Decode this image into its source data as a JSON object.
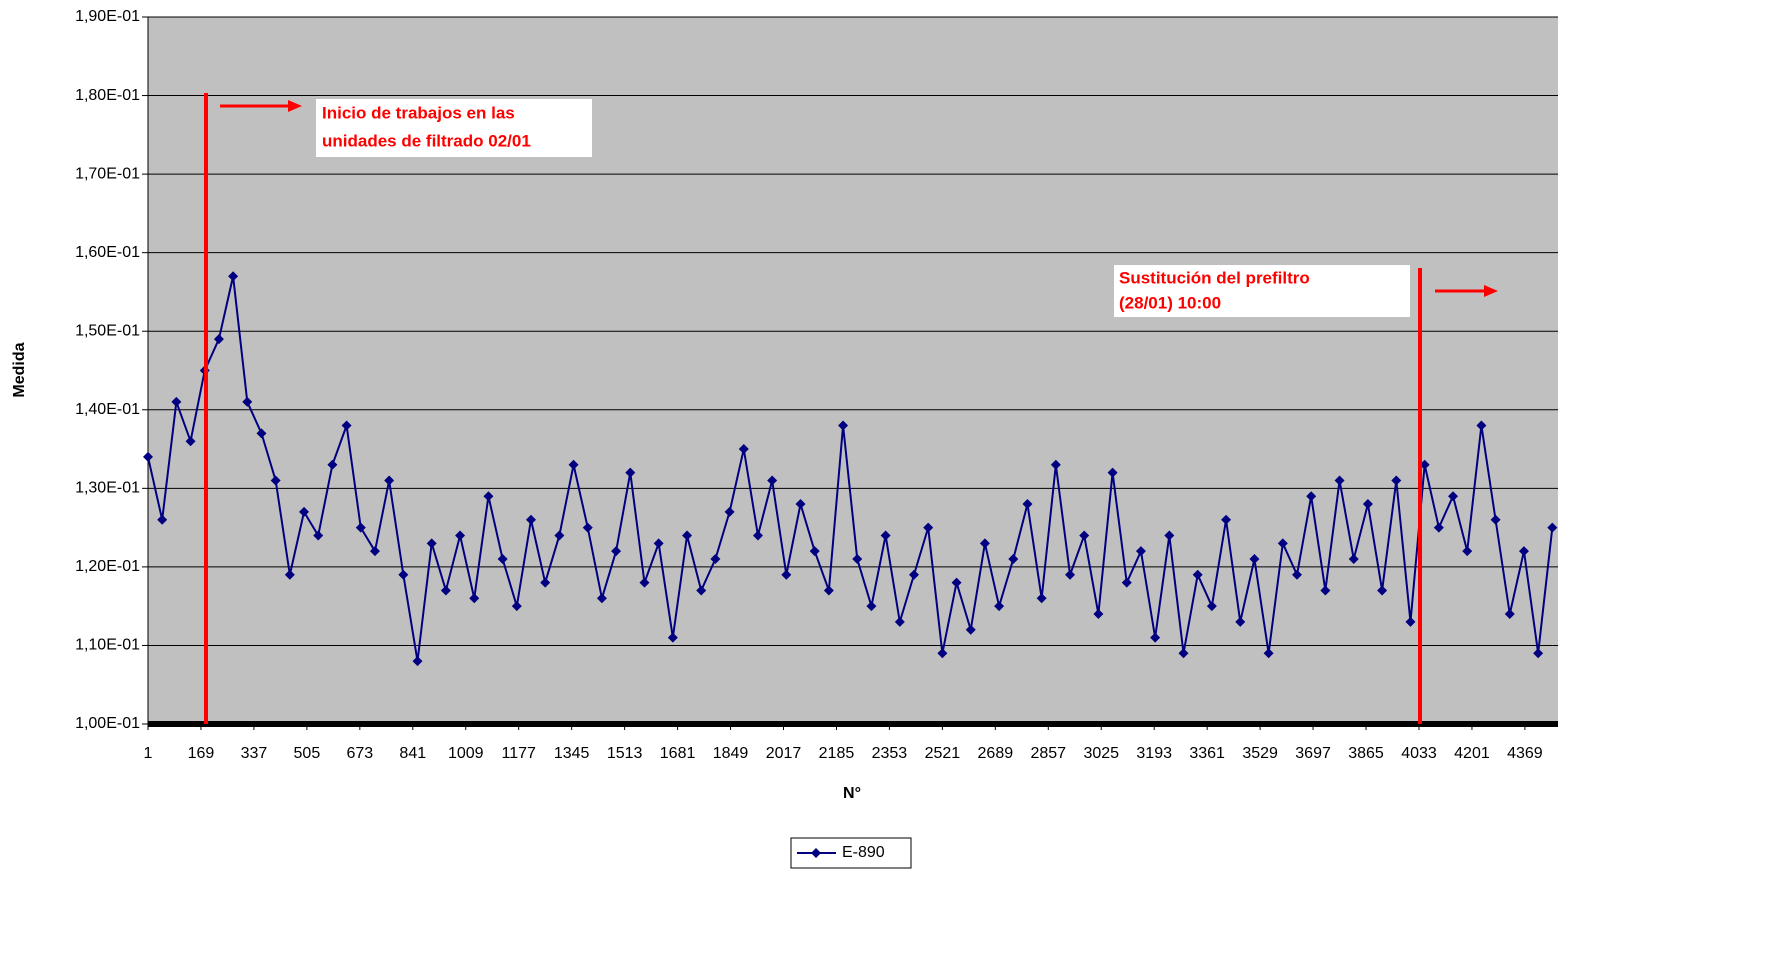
{
  "chart_data": {
    "type": "line",
    "ylabel": "Medida",
    "xlabel": "N°",
    "x": [
      1,
      46,
      91,
      136,
      181,
      226,
      271,
      316,
      361,
      406,
      451,
      496,
      541,
      586,
      631,
      676,
      721,
      766,
      811,
      856,
      901,
      946,
      991,
      1036,
      1081,
      1126,
      1171,
      1216,
      1261,
      1306,
      1351,
      1396,
      1441,
      1486,
      1531,
      1576,
      1621,
      1666,
      1711,
      1756,
      1801,
      1846,
      1891,
      1936,
      1981,
      2026,
      2071,
      2116,
      2161,
      2206,
      2251,
      2296,
      2341,
      2386,
      2431,
      2476,
      2521,
      2566,
      2611,
      2656,
      2701,
      2746,
      2791,
      2836,
      2881,
      2926,
      2971,
      3016,
      3061,
      3106,
      3151,
      3196,
      3241,
      3286,
      3331,
      3376,
      3421,
      3466,
      3511,
      3556,
      3601,
      3646,
      3691,
      3736,
      3781,
      3826,
      3871,
      3916,
      3961,
      4006,
      4051,
      4096,
      4141,
      4186,
      4231,
      4276,
      4321,
      4366,
      4411,
      4456
    ],
    "series": [
      {
        "name": "E-890",
        "color": "#000080",
        "values": [
          0.134,
          0.126,
          0.141,
          0.136,
          0.145,
          0.149,
          0.157,
          0.141,
          0.137,
          0.131,
          0.119,
          0.127,
          0.124,
          0.133,
          0.138,
          0.125,
          0.122,
          0.131,
          0.119,
          0.108,
          0.123,
          0.117,
          0.124,
          0.116,
          0.129,
          0.121,
          0.115,
          0.126,
          0.118,
          0.124,
          0.133,
          0.125,
          0.116,
          0.122,
          0.132,
          0.118,
          0.123,
          0.111,
          0.124,
          0.117,
          0.121,
          0.127,
          0.135,
          0.124,
          0.131,
          0.119,
          0.128,
          0.122,
          0.117,
          0.138,
          0.121,
          0.115,
          0.124,
          0.113,
          0.119,
          0.125,
          0.109,
          0.118,
          0.112,
          0.123,
          0.115,
          0.121,
          0.128,
          0.116,
          0.133,
          0.119,
          0.124,
          0.114,
          0.132,
          0.118,
          0.122,
          0.111,
          0.124,
          0.109,
          0.119,
          0.115,
          0.126,
          0.113,
          0.121,
          0.109,
          0.123,
          0.119,
          0.129,
          0.117,
          0.131,
          0.121,
          0.128,
          0.117,
          0.131,
          0.113,
          0.133,
          0.125,
          0.129,
          0.122,
          0.138,
          0.126,
          0.114,
          0.122,
          0.109,
          0.125
        ]
      }
    ],
    "xlim": [
      1,
      4474
    ],
    "xticks": [
      1,
      169,
      337,
      505,
      673,
      841,
      1009,
      1177,
      1345,
      1513,
      1681,
      1849,
      2017,
      2185,
      2353,
      2521,
      2689,
      2857,
      3025,
      3193,
      3361,
      3529,
      3697,
      3865,
      4033,
      4201,
      4369
    ],
    "ylim": [
      0.1,
      0.19
    ],
    "yticks": [
      {
        "value": 0.1,
        "label": "1,00E-01"
      },
      {
        "value": 0.11,
        "label": "1,10E-01"
      },
      {
        "value": 0.12,
        "label": "1,20E-01"
      },
      {
        "value": 0.13,
        "label": "1,30E-01"
      },
      {
        "value": 0.14,
        "label": "1,40E-01"
      },
      {
        "value": 0.15,
        "label": "1,50E-01"
      },
      {
        "value": 0.16,
        "label": "1,60E-01"
      },
      {
        "value": 0.17,
        "label": "1,70E-01"
      },
      {
        "value": 0.18,
        "label": "1,80E-01"
      },
      {
        "value": 0.19,
        "label": "1,90E-01"
      }
    ],
    "grid": true,
    "annotations": [
      [
        "Inicio de trabajos en las",
        "unidades de filtrado 02/01"
      ],
      [
        "Sustitución del prefiltro",
        "(28/01) 10:00"
      ]
    ]
  }
}
